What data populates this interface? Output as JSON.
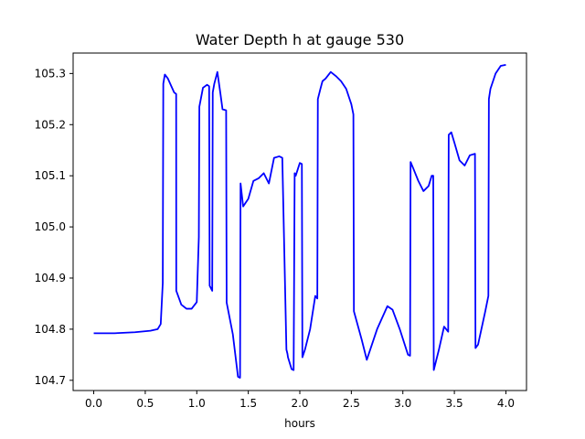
{
  "chart_data": {
    "type": "line",
    "title": "Water Depth h at gauge 530",
    "xlabel": "hours",
    "ylabel": "",
    "xlim": [
      -0.2,
      4.2
    ],
    "ylim": [
      104.68,
      105.34
    ],
    "xticks": [
      0.0,
      0.5,
      1.0,
      1.5,
      2.0,
      2.5,
      3.0,
      3.5,
      4.0
    ],
    "xtick_labels": [
      "0.0",
      "0.5",
      "1.0",
      "1.5",
      "2.0",
      "2.5",
      "3.0",
      "3.5",
      "4.0"
    ],
    "yticks": [
      104.7,
      104.8,
      104.9,
      105.0,
      105.1,
      105.2,
      105.3
    ],
    "ytick_labels": [
      "104.7",
      "104.8",
      "104.9",
      "105.0",
      "105.1",
      "105.2",
      "105.3"
    ],
    "grid": false,
    "line_color": "#0000ff",
    "series": [
      {
        "x": [
          0.0,
          0.2,
          0.4,
          0.55,
          0.62,
          0.65,
          0.67,
          0.675,
          0.69,
          0.72,
          0.78,
          0.8,
          0.801,
          0.85,
          0.9,
          0.95,
          1.0,
          1.02,
          1.025,
          1.06,
          1.1,
          1.12,
          1.125,
          1.15,
          1.155,
          1.17,
          1.2,
          1.23,
          1.25,
          1.285,
          1.29,
          1.35,
          1.4,
          1.42,
          1.425,
          1.45,
          1.5,
          1.55,
          1.6,
          1.65,
          1.7,
          1.75,
          1.8,
          1.83,
          1.87,
          1.88,
          1.885,
          1.92,
          1.94,
          1.95,
          1.96,
          2.0,
          2.02,
          2.025,
          2.05,
          2.1,
          2.15,
          2.17,
          2.175,
          2.2,
          2.22,
          2.25,
          2.3,
          2.35,
          2.4,
          2.45,
          2.5,
          2.52,
          2.525,
          2.6,
          2.65,
          2.75,
          2.85,
          2.9,
          2.97,
          3.05,
          3.07,
          3.075,
          3.1,
          3.15,
          3.2,
          3.25,
          3.28,
          3.295,
          3.3,
          3.35,
          3.4,
          3.44,
          3.445,
          3.47,
          3.5,
          3.55,
          3.6,
          3.65,
          3.7,
          3.705,
          3.73,
          3.8,
          3.83,
          3.835,
          3.85,
          3.9,
          3.95,
          4.0
        ],
        "y": [
          104.792,
          104.792,
          104.794,
          104.797,
          104.8,
          104.81,
          104.89,
          105.28,
          105.298,
          105.29,
          105.263,
          105.26,
          104.875,
          104.848,
          104.84,
          104.84,
          104.853,
          104.98,
          105.235,
          105.272,
          105.278,
          105.275,
          104.885,
          104.875,
          105.263,
          105.28,
          105.303,
          105.26,
          105.23,
          105.228,
          104.852,
          104.79,
          104.707,
          104.705,
          105.085,
          105.04,
          105.055,
          105.09,
          105.095,
          105.105,
          105.085,
          105.135,
          105.138,
          105.135,
          104.76,
          104.752,
          104.745,
          104.722,
          104.72,
          105.105,
          105.1,
          105.125,
          105.123,
          104.745,
          104.76,
          104.8,
          104.865,
          104.86,
          105.25,
          105.27,
          105.285,
          105.29,
          105.303,
          105.295,
          105.285,
          105.27,
          105.24,
          105.22,
          104.835,
          104.78,
          104.74,
          104.8,
          104.845,
          104.838,
          104.8,
          104.75,
          104.748,
          105.127,
          105.115,
          105.09,
          105.07,
          105.08,
          105.1,
          105.1,
          104.72,
          104.76,
          104.805,
          104.795,
          105.18,
          105.185,
          105.165,
          105.13,
          105.12,
          105.14,
          105.143,
          104.763,
          104.77,
          104.835,
          104.865,
          105.25,
          105.27,
          105.3,
          105.315,
          105.317
        ]
      }
    ]
  }
}
